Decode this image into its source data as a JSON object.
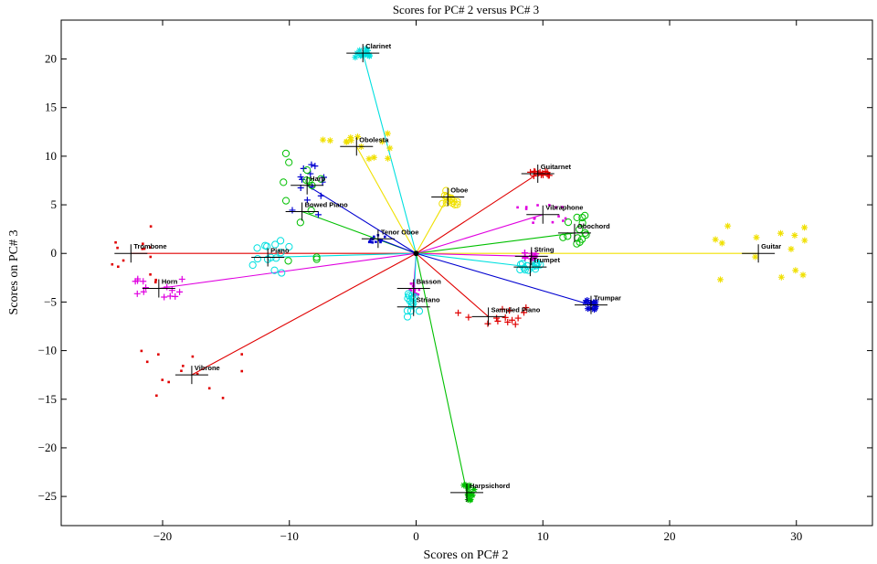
{
  "chart_data": {
    "type": "scatter",
    "title": "Scores for PC# 2 versus PC# 3",
    "xlabel": "Scores on PC# 2",
    "ylabel": "Scores on PC# 3",
    "xlim": [
      -28,
      36
    ],
    "ylim": [
      -28,
      24
    ],
    "xticks": [
      -20,
      -10,
      0,
      10,
      20,
      30
    ],
    "yticks": [
      -25,
      -20,
      -15,
      -10,
      -5,
      0,
      5,
      10,
      15,
      20
    ],
    "instruments": [
      {
        "name": "Clarinet",
        "x": -4.2,
        "y": 20.6,
        "color": "#00e0e0",
        "marker": "star",
        "spread": [
          0.6,
          0.5
        ]
      },
      {
        "name": "Obolesta",
        "x": -4.7,
        "y": 11.0,
        "color": "#f0e000",
        "marker": "star",
        "spread": [
          3.0,
          1.5
        ]
      },
      {
        "name": "Harp",
        "x": -8.6,
        "y": 7.0,
        "color": "#0000d0",
        "marker": "plus",
        "spread": [
          1.5,
          4.0
        ]
      },
      {
        "name": "Bowed Piano",
        "x": -9.0,
        "y": 4.3,
        "color": "#00c000",
        "marker": "circle",
        "spread": [
          1.5,
          6.0
        ]
      },
      {
        "name": "Tenor Oboe",
        "x": -3.0,
        "y": 1.5,
        "color": "#0000d0",
        "marker": "dot",
        "spread": [
          0.7,
          0.4
        ]
      },
      {
        "name": "Trombone",
        "x": -22.5,
        "y": 0.0,
        "color": "#e00000",
        "marker": "dot",
        "spread": [
          2.0,
          3.0
        ]
      },
      {
        "name": "Piano",
        "x": -11.7,
        "y": -0.4,
        "color": "#00e0e0",
        "marker": "circle",
        "spread": [
          2.0,
          1.8
        ]
      },
      {
        "name": "Horn",
        "x": -20.3,
        "y": -3.6,
        "color": "#e000e0",
        "marker": "plus",
        "spread": [
          2.0,
          1.0
        ]
      },
      {
        "name": "Vibrone",
        "x": -17.7,
        "y": -12.5,
        "color": "#e00000",
        "marker": "dot",
        "spread": [
          4.0,
          2.5
        ]
      },
      {
        "name": "Oboe",
        "x": 2.5,
        "y": 5.8,
        "color": "#f0e000",
        "marker": "circle",
        "spread": [
          0.8,
          0.8
        ]
      },
      {
        "name": "Guitarnet",
        "x": 9.6,
        "y": 8.2,
        "color": "#e00000",
        "marker": "plus",
        "spread": [
          1.0,
          0.3
        ]
      },
      {
        "name": "Vibraphone",
        "x": 10.0,
        "y": 4.0,
        "color": "#e000e0",
        "marker": "dot",
        "spread": [
          2.0,
          1.0
        ]
      },
      {
        "name": "Obochord",
        "x": 12.5,
        "y": 2.1,
        "color": "#00c000",
        "marker": "circle",
        "spread": [
          1.0,
          2.0
        ]
      },
      {
        "name": "Guitar",
        "x": 27.0,
        "y": 0.0,
        "color": "#f0e000",
        "marker": "star",
        "spread": [
          4.0,
          3.0
        ]
      },
      {
        "name": "String",
        "x": 9.1,
        "y": -0.3,
        "color": "#e000e0",
        "marker": "plus",
        "spread": [
          0.6,
          0.4
        ]
      },
      {
        "name": "Trumpet",
        "x": 9.0,
        "y": -1.4,
        "color": "#00e0e0",
        "marker": "circle",
        "spread": [
          0.8,
          0.4
        ]
      },
      {
        "name": "Trumpar",
        "x": 13.8,
        "y": -5.3,
        "color": "#0000d0",
        "marker": "star",
        "spread": [
          0.5,
          0.5
        ]
      },
      {
        "name": "Basson",
        "x": -0.2,
        "y": -3.6,
        "color": "#e000e0",
        "marker": "dot",
        "spread": [
          0.5,
          1.0
        ]
      },
      {
        "name": "Striano",
        "x": -0.2,
        "y": -5.5,
        "color": "#00e0e0",
        "marker": "circle",
        "spread": [
          0.6,
          1.5
        ]
      },
      {
        "name": "Sampled Piano",
        "x": 5.7,
        "y": -6.5,
        "color": "#e00000",
        "marker": "plus",
        "spread": [
          3.0,
          1.0
        ]
      },
      {
        "name": "Harpsichord",
        "x": 4.0,
        "y": -24.6,
        "color": "#00c000",
        "marker": "star",
        "spread": [
          0.6,
          0.8
        ]
      }
    ]
  }
}
